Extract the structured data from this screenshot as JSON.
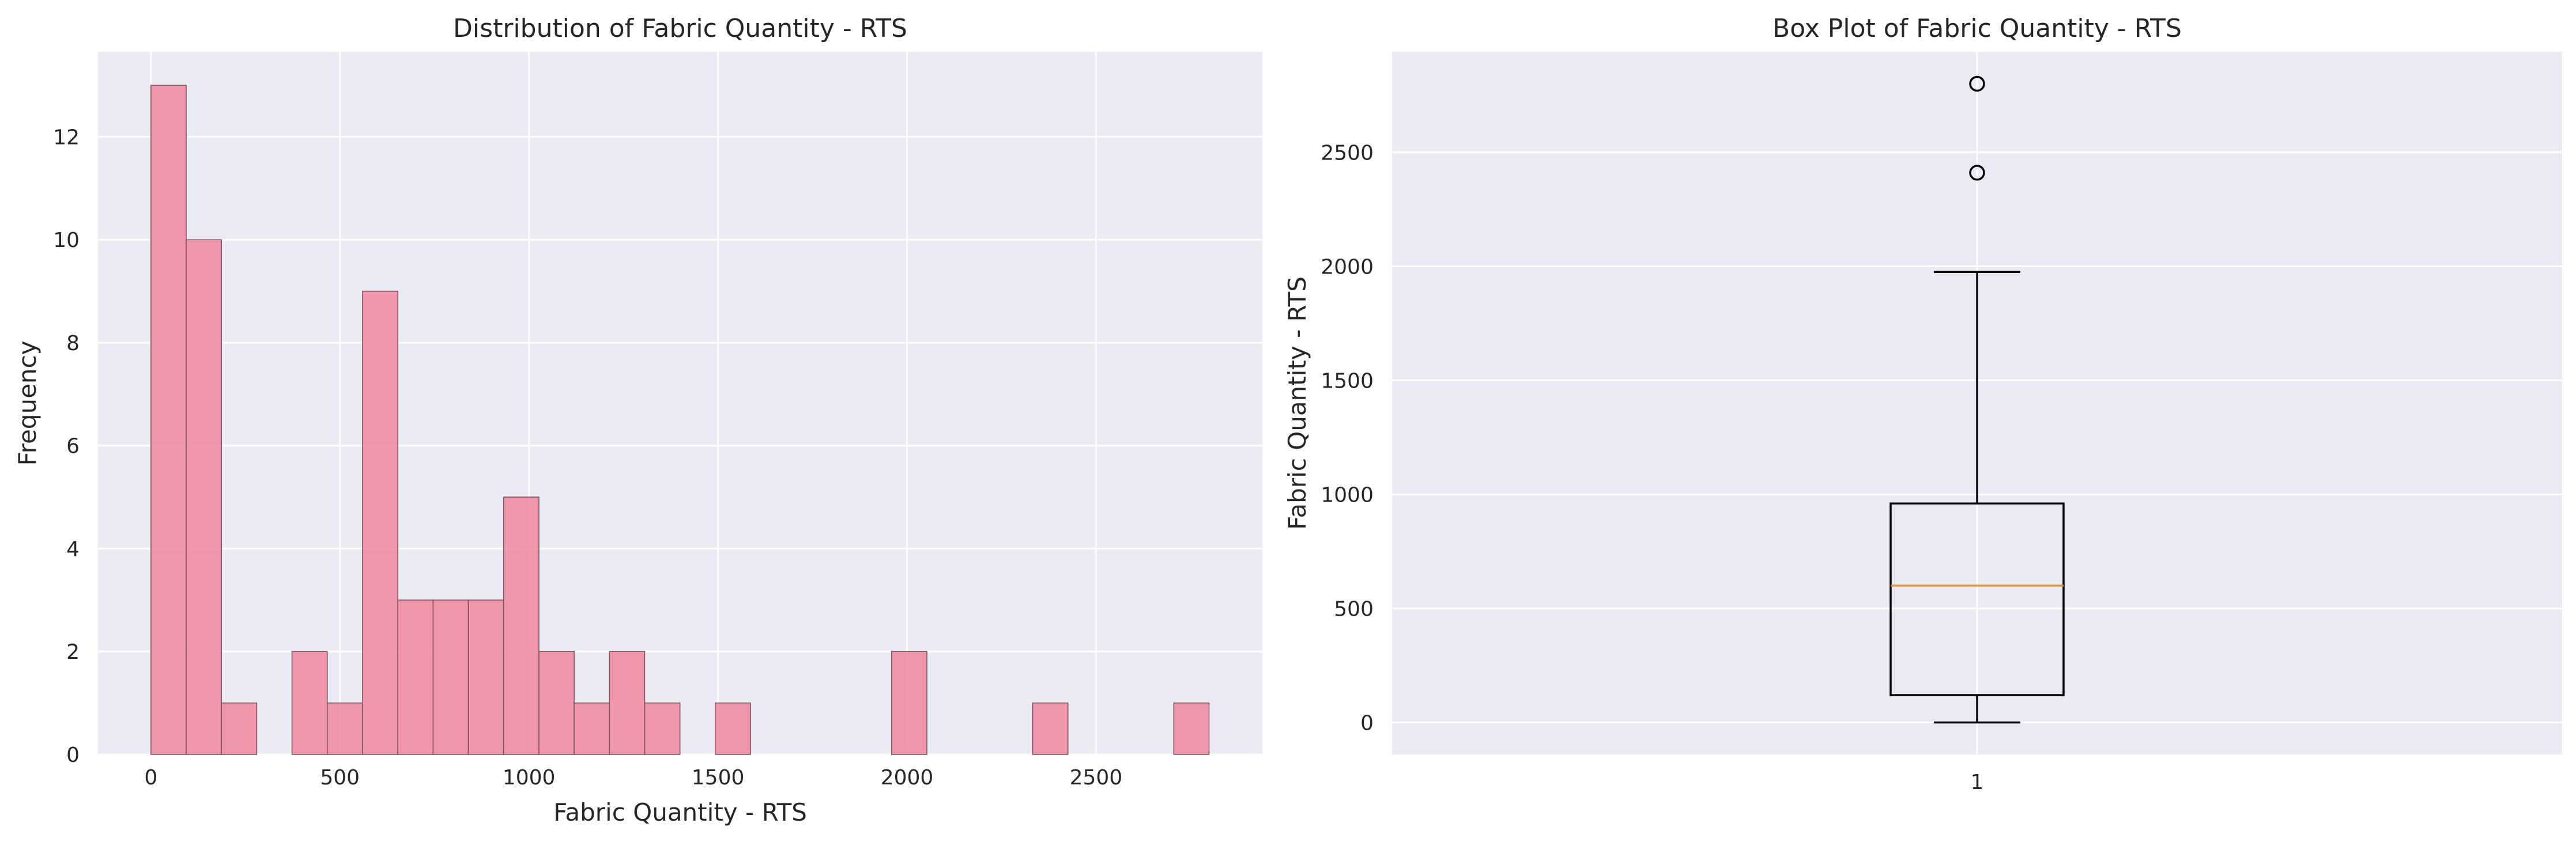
{
  "chart_data": [
    {
      "type": "histogram",
      "title": "Distribution of Fabric Quantity - RTS",
      "xlabel": "Fabric Quantity - RTS",
      "ylabel": "Frequency",
      "xlim": [
        -140,
        2940
      ],
      "ylim": [
        0,
        13.65
      ],
      "xticks": [
        0,
        500,
        1000,
        1500,
        2000,
        2500
      ],
      "yticks": [
        0,
        2,
        4,
        6,
        8,
        10,
        12
      ],
      "bin_start": 0,
      "bin_width": 93.3,
      "counts": [
        13,
        10,
        1,
        0,
        2,
        1,
        9,
        3,
        3,
        3,
        5,
        2,
        1,
        2,
        1,
        0,
        1,
        0,
        0,
        0,
        0,
        2,
        0,
        0,
        0,
        1,
        0,
        0,
        0,
        1
      ],
      "bar_color": "#f1879d",
      "grid": true,
      "background": "#eaeaf2"
    },
    {
      "type": "box",
      "title": "Box Plot of Fabric Quantity - RTS",
      "ylabel": "Fabric Quantity - RTS",
      "category": "1",
      "ylim": [
        -140,
        2940
      ],
      "yticks": [
        0,
        500,
        1000,
        1500,
        2000,
        2500
      ],
      "whisker_low": 0,
      "q1": 120,
      "median": 600,
      "q3": 960,
      "whisker_high": 1975,
      "outliers": [
        2410,
        2800
      ],
      "median_color": "#d69a45",
      "grid": true,
      "background": "#eaeaf2"
    }
  ]
}
